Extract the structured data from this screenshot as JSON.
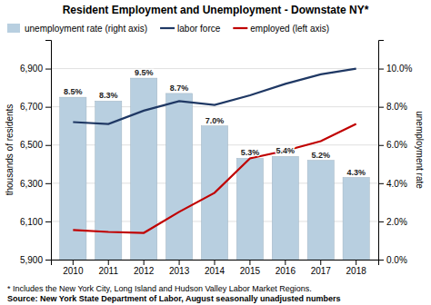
{
  "chart_data": {
    "type": "bar",
    "title": "Resident Employment and Unemployment - Downstate NY*",
    "categories": [
      "2010",
      "2011",
      "2012",
      "2013",
      "2014",
      "2015",
      "2016",
      "2017",
      "2018"
    ],
    "series": [
      {
        "name": "unemployment rate (right axis)",
        "type": "bar",
        "axis": "y2",
        "color": "#b8cfe0",
        "data_labels": true,
        "values": [
          8.5,
          8.3,
          9.5,
          8.7,
          7.0,
          5.3,
          5.4,
          5.2,
          4.3
        ],
        "value_labels": [
          "8.5%",
          "8.3%",
          "9.5%",
          "8.7%",
          "7.0%",
          "5.3%",
          "5.4%",
          "5.2%",
          "4.3%"
        ]
      },
      {
        "name": "labor force",
        "type": "line",
        "color": "#1f3864",
        "values": [
          6620,
          6610,
          6680,
          6730,
          6710,
          6760,
          6820,
          6870,
          6900
        ]
      },
      {
        "name": "employed (left axis)",
        "type": "line",
        "color": "#c00000",
        "values": [
          6055,
          6045,
          6040,
          6150,
          6250,
          6430,
          6470,
          6520,
          6610
        ]
      }
    ],
    "ylabel": "thousands of residents",
    "y2label": "unemployment rate",
    "ylim": [
      5900,
      7050
    ],
    "yticks": [
      {
        "value": 5900,
        "label": "5,900"
      },
      {
        "value": 6100,
        "label": "6,100"
      },
      {
        "value": 6300,
        "label": "6,300"
      },
      {
        "value": 6500,
        "label": "6,500"
      },
      {
        "value": 6700,
        "label": "6,700"
      },
      {
        "value": 6900,
        "label": "6,900"
      }
    ],
    "y2lim": [
      0.0,
      11.5
    ],
    "y2ticks": [
      {
        "value": 0.0,
        "label": "0.0%"
      },
      {
        "value": 2.0,
        "label": "2.0%"
      },
      {
        "value": 4.0,
        "label": "4.0%"
      },
      {
        "value": 6.0,
        "label": "6.0%"
      },
      {
        "value": 8.0,
        "label": "8.0%"
      },
      {
        "value": 10.0,
        "label": "10.0%"
      }
    ],
    "grid": true,
    "legend": "top-left",
    "annotations": [
      "* Includes the New York City, Long Island and Hudson Valley Labor Market Regions.",
      "Source: New York State Department of Labor, August seasonally unadjusted numbers"
    ]
  }
}
